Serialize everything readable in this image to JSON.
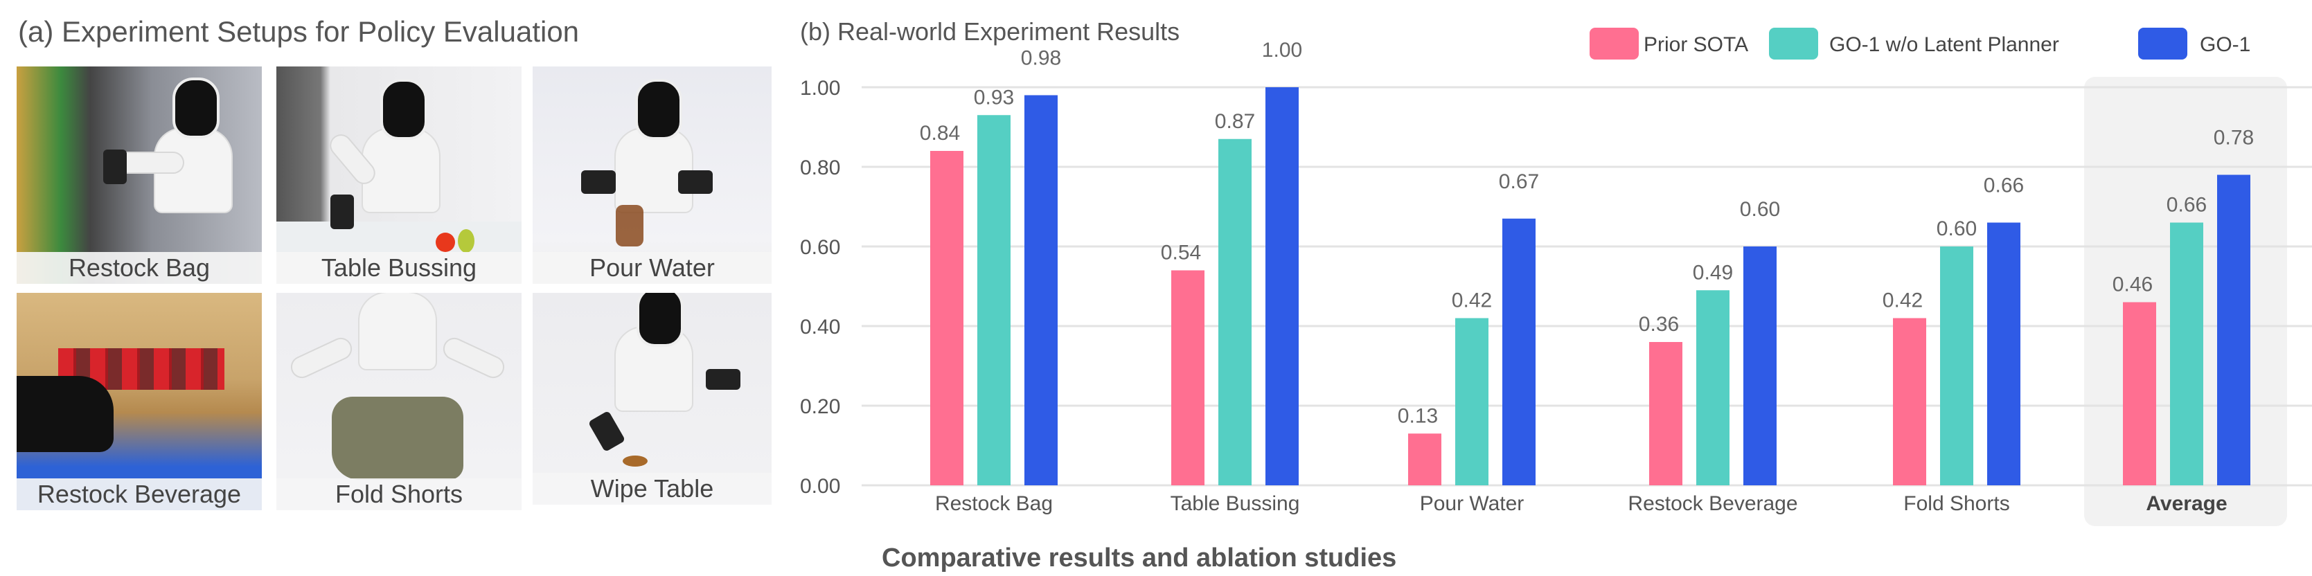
{
  "panel_a": {
    "title": "(a) Experiment Setups for Policy Evaluation",
    "tiles": [
      {
        "label": "Restock Bag"
      },
      {
        "label": "Table Bussing"
      },
      {
        "label": "Pour Water"
      },
      {
        "label": "Restock Beverage"
      },
      {
        "label": "Fold Shorts"
      },
      {
        "label": "Wipe Table"
      }
    ]
  },
  "chart_data": {
    "type": "bar",
    "title": "(b) Real-world Experiment Results",
    "caption": "Comparative results and ablation studies",
    "categories": [
      "Restock Bag",
      "Table Bussing",
      "Pour Water",
      "Restock Beverage",
      "Fold Shorts",
      "Average"
    ],
    "highlighted_category": "Average",
    "series": [
      {
        "name": "Prior SOTA",
        "color": "#ff6f91",
        "values": [
          0.84,
          0.54,
          0.13,
          0.36,
          0.42,
          0.46
        ]
      },
      {
        "name": "GO-1 w/o Latent Planner",
        "color": "#55cfc3",
        "values": [
          0.93,
          0.87,
          0.42,
          0.49,
          0.6,
          0.66
        ]
      },
      {
        "name": "GO-1",
        "color": "#2f5be6",
        "values": [
          0.98,
          1.0,
          0.67,
          0.6,
          0.66,
          0.78
        ]
      }
    ],
    "yticks": [
      "0.00",
      "0.20",
      "0.40",
      "0.60",
      "0.80",
      "1.00"
    ],
    "ylim": [
      0,
      1.0
    ],
    "grid": true,
    "legend": "top-right"
  }
}
